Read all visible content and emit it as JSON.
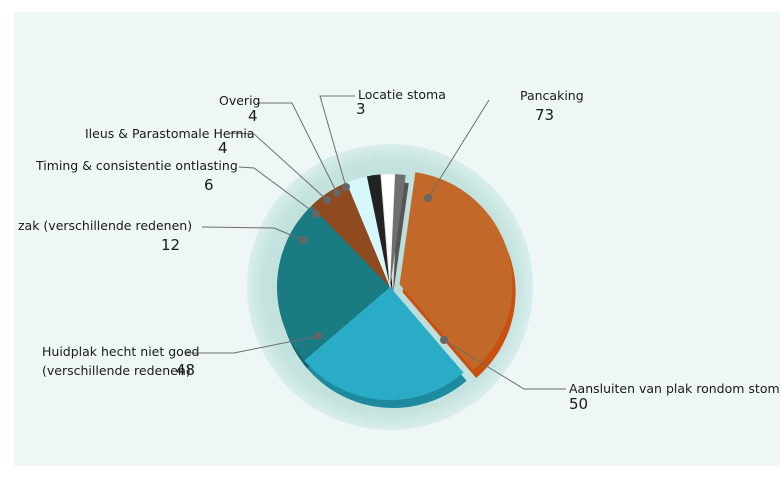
{
  "chart_data": {
    "type": "pie",
    "slices": [
      {
        "label": "Pancaking",
        "value": 73,
        "color": "#c2692a",
        "side": "#c9500f"
      },
      {
        "label": "Aansluiten van plak rondom stoma",
        "value": 50,
        "color": "#2aacc7",
        "side": "#1d8aa0"
      },
      {
        "label": "Huidplak hecht niet goed",
        "label2": "(verschillende redenen)",
        "value": 48,
        "color": "#1a7b83",
        "side": "#14636a"
      },
      {
        "label": "zak (verschillende redenen)",
        "value": 12,
        "color": "#8f4a1f",
        "side": "#6e3815"
      },
      {
        "label": "Timing & consistentie ontlasting",
        "value": 6,
        "color": "#d6f7fb",
        "side": "#b5e2e8"
      },
      {
        "label": "Ileus & Parastomale Hernia",
        "value": 4,
        "color": "#222222",
        "side": "#111111"
      },
      {
        "label": "Overig",
        "value": 4,
        "color": "#ffffff",
        "side": "#dddddd"
      },
      {
        "label": "Locatie stoma",
        "value": 3,
        "color": "#6f6f6f",
        "side": "#555555"
      }
    ]
  }
}
